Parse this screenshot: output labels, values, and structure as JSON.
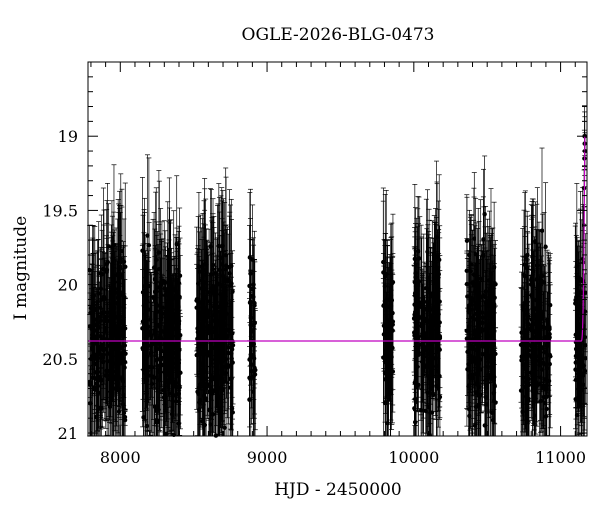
{
  "chart_data": {
    "type": "scatter",
    "title": "OGLE-2026-BLG-0473",
    "xlabel": "HJD - 2450000",
    "ylabel": "I magnitude",
    "xlim": [
      7780,
      11180
    ],
    "ylim": [
      21.02,
      18.5
    ],
    "y_inverted": true,
    "x_ticks": [
      8000,
      9000,
      10000,
      11000
    ],
    "y_ticks": [
      19,
      19.5,
      20,
      20.5,
      21
    ],
    "y_tick_labels": [
      "19",
      "19.5",
      "20",
      "20.5",
      "21"
    ],
    "grid": false,
    "baseline_magnitude": 20.38,
    "seasons": [
      {
        "start": 7790,
        "end": 8040,
        "mean_mag": 20.35,
        "spread": 0.32
      },
      {
        "start": 8150,
        "end": 8410,
        "mean_mag": 20.35,
        "spread": 0.32
      },
      {
        "start": 8520,
        "end": 8770,
        "mean_mag": 20.35,
        "spread": 0.32
      },
      {
        "start": 8880,
        "end": 8920,
        "mean_mag": 20.35,
        "spread": 0.3
      },
      {
        "start": 9790,
        "end": 9860,
        "mean_mag": 20.35,
        "spread": 0.3
      },
      {
        "start": 10000,
        "end": 10180,
        "mean_mag": 20.35,
        "spread": 0.32
      },
      {
        "start": 10360,
        "end": 10560,
        "mean_mag": 20.35,
        "spread": 0.32
      },
      {
        "start": 10730,
        "end": 10930,
        "mean_mag": 20.35,
        "spread": 0.32
      },
      {
        "start": 11100,
        "end": 11170,
        "mean_mag": 20.35,
        "spread": 0.32
      }
    ],
    "event": {
      "rise_start": 11140,
      "peak_hjd": 11165,
      "peak_mag": 19.0,
      "points": [
        {
          "x": 11155,
          "y": 19.85
        },
        {
          "x": 11158,
          "y": 19.6
        },
        {
          "x": 11160,
          "y": 19.35
        },
        {
          "x": 11162,
          "y": 19.15
        },
        {
          "x": 11163,
          "y": 19.0
        },
        {
          "x": 11164,
          "y": 19.05
        },
        {
          "x": 11165,
          "y": 19.0
        },
        {
          "x": 11166,
          "y": 19.1
        }
      ]
    },
    "point_color": "#000000",
    "model_color": "#c000c0"
  }
}
